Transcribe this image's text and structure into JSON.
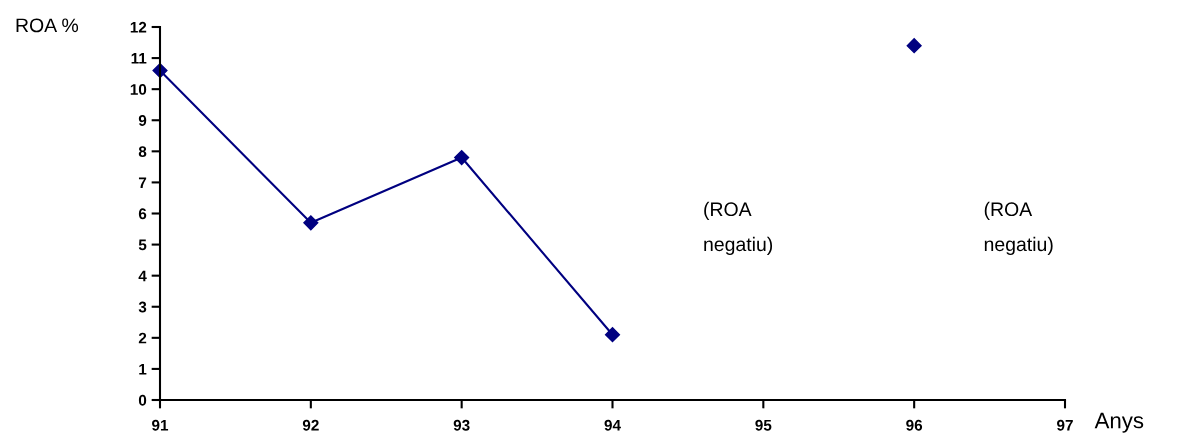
{
  "chart_data": {
    "type": "line",
    "xlabel": "Anys",
    "ylabel": "ROA %",
    "x": [
      91,
      92,
      93,
      94,
      95,
      96
    ],
    "series": [
      {
        "color": "#000080",
        "values": [
          10.6,
          5.7,
          7.8,
          2.1,
          null,
          11.4
        ]
      }
    ],
    "xlim": [
      91,
      97
    ],
    "xticks": [
      91,
      92,
      93,
      94,
      95,
      96,
      97
    ],
    "ylim": [
      0,
      12
    ],
    "yticks": [
      0,
      1,
      2,
      3,
      4,
      5,
      6,
      7,
      8,
      9,
      10,
      11,
      12
    ],
    "annotations": [
      "(ROA\nnegatiu)",
      "(ROA\nnegatiu)"
    ],
    "marker": "diamond",
    "line_style": "solid",
    "grid": false,
    "legend": false
  }
}
